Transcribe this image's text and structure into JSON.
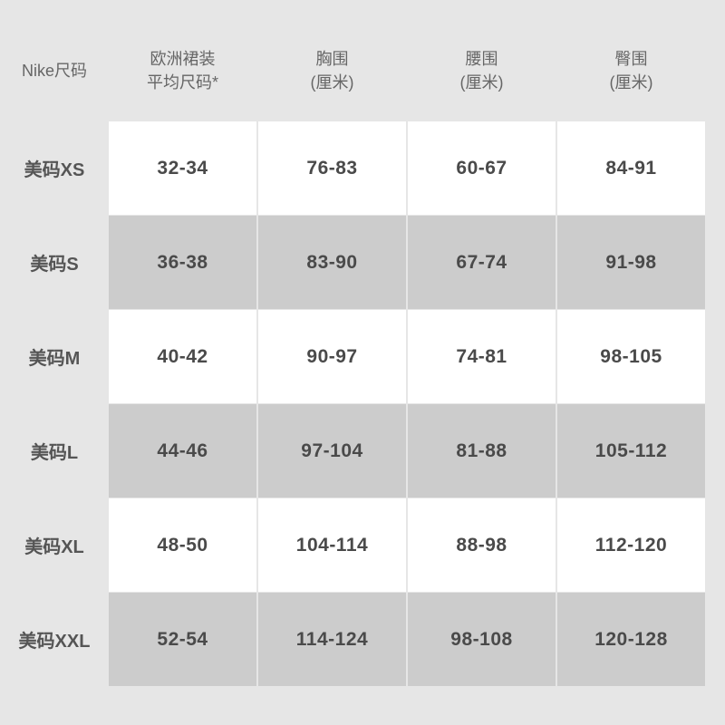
{
  "table": {
    "header": [
      [
        "Nike尺码"
      ],
      [
        "欧洲裙装",
        "平均尺码*"
      ],
      [
        "胸围",
        "(厘米)"
      ],
      [
        "腰围",
        "(厘米)"
      ],
      [
        "臀围",
        "(厘米)"
      ]
    ],
    "rows": [
      [
        "美码XS",
        "32-34",
        "76-83",
        "60-67",
        "84-91"
      ],
      [
        "美码S",
        "36-38",
        "83-90",
        "67-74",
        "91-98"
      ],
      [
        "美码M",
        "40-42",
        "90-97",
        "74-81",
        "98-105"
      ],
      [
        "美码L",
        "44-46",
        "97-104",
        "81-88",
        "105-112"
      ],
      [
        "美码XL",
        "48-50",
        "104-114",
        "88-98",
        "112-120"
      ],
      [
        "美码XXL",
        "52-54",
        "114-124",
        "98-108",
        "120-128"
      ]
    ]
  }
}
